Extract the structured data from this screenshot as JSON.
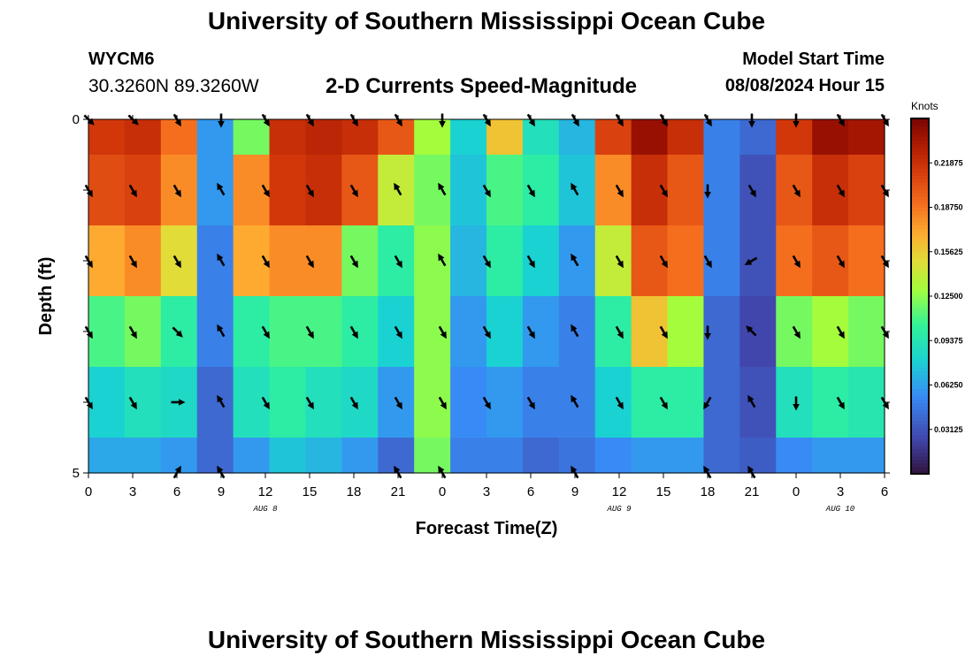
{
  "header": {
    "title": "University of Southern Mississippi Ocean Cube",
    "station": "WYCM6",
    "coords": "30.3260N  89.3260W",
    "subtitle": "2-D Currents Speed-Magnitude",
    "model_start_label": "Model Start Time",
    "model_start_value": "08/08/2024 Hour 15"
  },
  "footer": {
    "title": "University of Southern Mississippi Ocean Cube"
  },
  "chart_data": {
    "type": "heatmap",
    "title": "2-D Currents Speed-Magnitude",
    "xlabel": "Forecast Time(Z)",
    "ylabel": "Depth (ft)",
    "x_hours": [
      0,
      3,
      6,
      9,
      12,
      15,
      18,
      21,
      24,
      27,
      30,
      33,
      36,
      39,
      42,
      45,
      48,
      51,
      54
    ],
    "x_tick_labels": [
      "0",
      "3",
      "6",
      "9",
      "12",
      "15",
      "18",
      "21",
      "0",
      "3",
      "6",
      "9",
      "12",
      "15",
      "18",
      "21",
      "0",
      "3",
      "6"
    ],
    "xlim": [
      0,
      54
    ],
    "date_labels": [
      {
        "text": "AUG 8",
        "hour": 12
      },
      {
        "text": "AUG 9",
        "hour": 36
      },
      {
        "text": "AUG 10",
        "hour": 51
      }
    ],
    "y_tick_labels": [
      {
        "value": 0,
        "text": "0"
      },
      {
        "value": 5,
        "text": "5"
      }
    ],
    "ylim": [
      0,
      5
    ],
    "depth_levels": 5,
    "colorbar": {
      "label": "Knots",
      "min": 0.0,
      "max": 0.25,
      "ticks": [
        "0.03125",
        "0.06250",
        "0.09375",
        "0.12500",
        "0.15625",
        "0.18750",
        "0.21875"
      ]
    },
    "speed_knots_rows": [
      [
        0.215,
        0.22,
        0.19,
        0.06,
        0.12,
        0.22,
        0.225,
        0.22,
        0.2,
        0.13,
        0.08,
        0.16,
        0.09,
        0.07,
        0.21,
        0.24,
        0.22,
        0.05,
        0.04,
        0.215,
        0.24,
        0.235
      ],
      [
        0.205,
        0.21,
        0.18,
        0.06,
        0.18,
        0.215,
        0.22,
        0.2,
        0.14,
        0.12,
        0.075,
        0.11,
        0.1,
        0.075,
        0.18,
        0.22,
        0.2,
        0.05,
        0.03,
        0.2,
        0.22,
        0.21
      ],
      [
        0.17,
        0.18,
        0.15,
        0.05,
        0.17,
        0.18,
        0.18,
        0.12,
        0.1,
        0.125,
        0.07,
        0.1,
        0.08,
        0.06,
        0.14,
        0.2,
        0.19,
        0.05,
        0.03,
        0.19,
        0.2,
        0.19
      ],
      [
        0.11,
        0.12,
        0.1,
        0.05,
        0.1,
        0.11,
        0.11,
        0.1,
        0.08,
        0.125,
        0.06,
        0.08,
        0.06,
        0.05,
        0.1,
        0.16,
        0.13,
        0.04,
        0.025,
        0.12,
        0.13,
        0.12
      ],
      [
        0.08,
        0.09,
        0.085,
        0.04,
        0.09,
        0.1,
        0.09,
        0.085,
        0.06,
        0.125,
        0.055,
        0.06,
        0.05,
        0.05,
        0.08,
        0.1,
        0.1,
        0.04,
        0.03,
        0.09,
        0.1,
        0.095
      ],
      [
        0.065,
        0.065,
        0.06,
        0.04,
        0.06,
        0.075,
        0.07,
        0.06,
        0.04,
        0.12,
        0.05,
        0.05,
        0.04,
        0.045,
        0.055,
        0.06,
        0.06,
        0.04,
        0.035,
        0.055,
        0.06,
        0.06
      ]
    ],
    "arrow_hours": [
      0,
      3,
      6,
      9,
      12,
      15,
      18,
      21,
      24,
      27,
      30,
      33,
      36,
      39,
      42,
      45,
      48,
      51,
      54
    ],
    "arrow_direction_deg": [
      [
        135,
        135,
        150,
        180,
        150,
        150,
        150,
        150,
        180,
        150,
        150,
        150,
        150,
        150,
        150,
        180,
        180,
        150,
        150
      ],
      [
        150,
        150,
        150,
        330,
        150,
        150,
        150,
        330,
        330,
        150,
        150,
        330,
        150,
        150,
        180,
        150,
        150,
        150,
        150
      ],
      [
        150,
        150,
        150,
        330,
        150,
        150,
        150,
        150,
        330,
        150,
        150,
        330,
        150,
        150,
        150,
        240,
        150,
        150,
        150
      ],
      [
        150,
        150,
        135,
        330,
        150,
        150,
        150,
        150,
        150,
        150,
        150,
        330,
        150,
        150,
        180,
        315,
        150,
        150,
        150
      ],
      [
        150,
        150,
        90,
        330,
        150,
        150,
        150,
        150,
        150,
        150,
        150,
        330,
        150,
        150,
        210,
        330,
        180,
        150,
        150
      ],
      [
        null,
        null,
        30,
        330,
        null,
        null,
        null,
        330,
        330,
        null,
        null,
        330,
        null,
        null,
        330,
        330,
        null,
        null,
        null
      ]
    ]
  }
}
